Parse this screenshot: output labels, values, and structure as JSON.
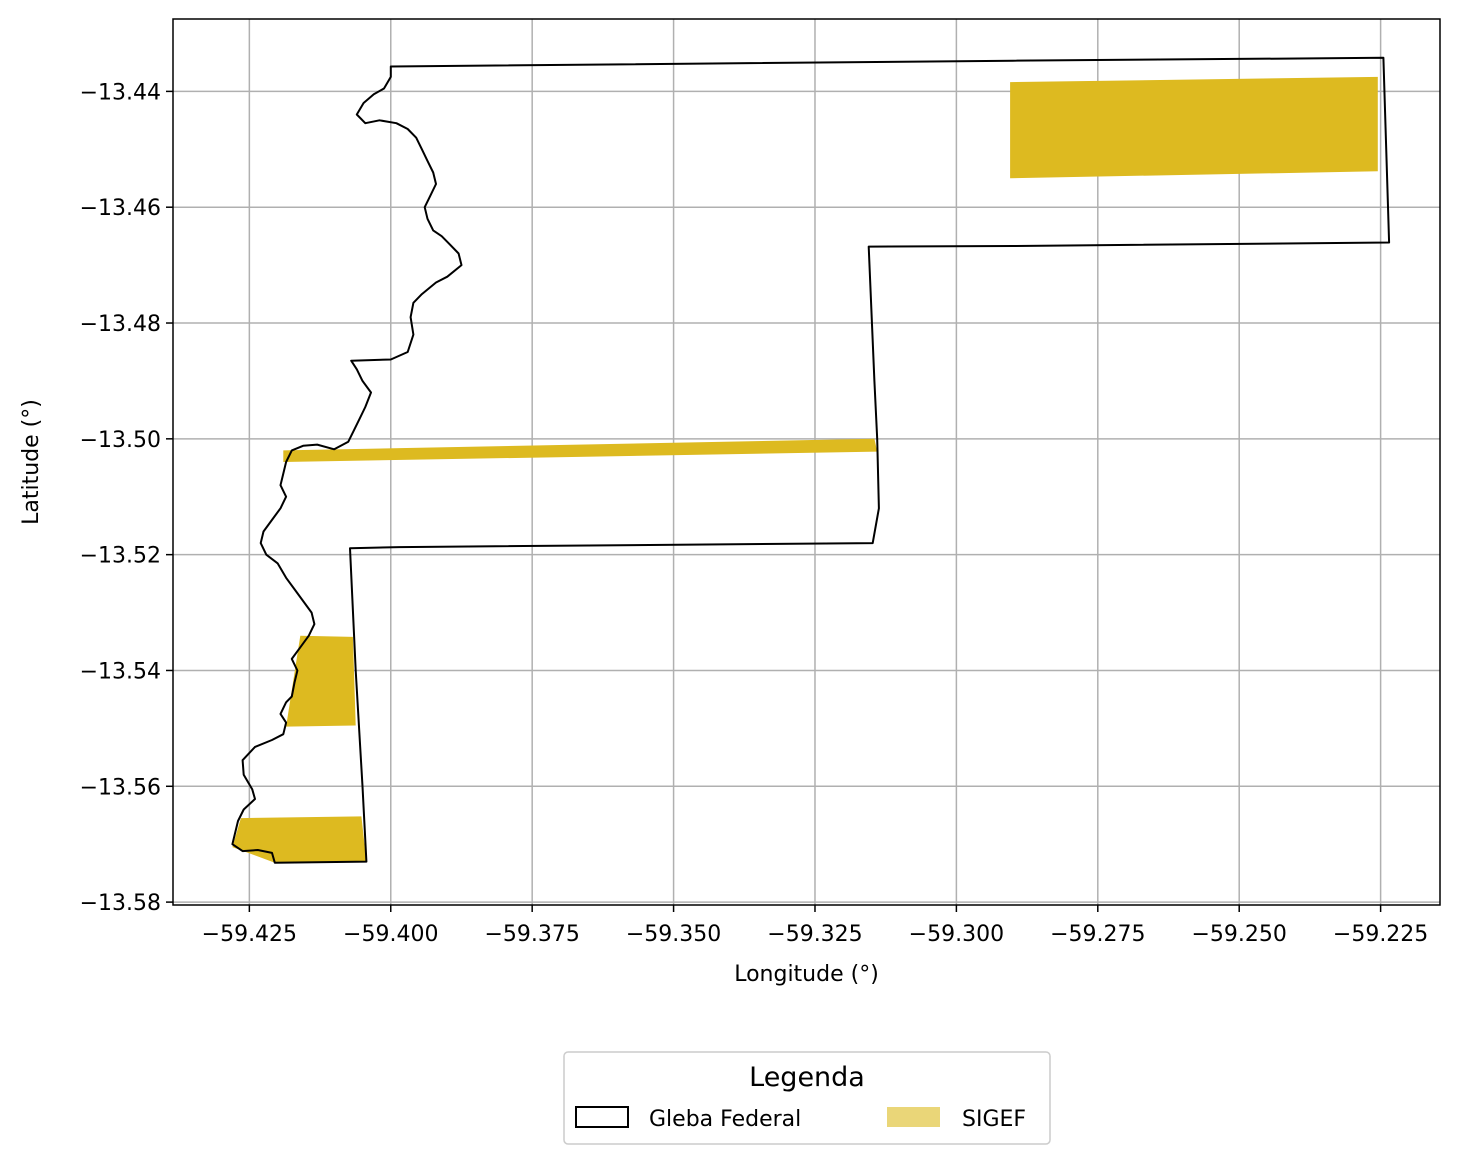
{
  "chart_data": {
    "type": "map",
    "xlabel": "Longitude (°)",
    "ylabel": "Latitude (°)",
    "xlim": [
      -59.4385,
      -59.2145
    ],
    "ylim": [
      -13.5805,
      -13.4275
    ],
    "x_ticks": [
      -59.425,
      -59.4,
      -59.375,
      -59.35,
      -59.325,
      -59.3,
      -59.275,
      -59.25,
      -59.225
    ],
    "x_tick_labels": [
      "−59.425",
      "−59.400",
      "−59.375",
      "−59.350",
      "−59.325",
      "−59.300",
      "−59.275",
      "−59.250",
      "−59.225"
    ],
    "y_ticks": [
      -13.44,
      -13.46,
      -13.48,
      -13.5,
      -13.52,
      -13.54,
      -13.56,
      -13.58
    ],
    "y_tick_labels": [
      "−13.44",
      "−13.46",
      "−13.48",
      "−13.50",
      "−13.52",
      "−13.54",
      "−13.56",
      "−13.58"
    ],
    "grid": true,
    "legend": {
      "title": "Legenda",
      "placement": "bottom-center",
      "entries": [
        {
          "label": "Gleba Federal",
          "style": "outline",
          "color": "#000000"
        },
        {
          "label": "SIGEF",
          "style": "fill",
          "color": "#ddba20",
          "swatch_color": "#ead678"
        }
      ]
    },
    "series": [
      {
        "name": "Gleba Federal",
        "kind": "outline",
        "color": "#000000",
        "coords": [
          [
            -59.4,
            -13.4357
          ],
          [
            -59.29,
            -13.4347
          ],
          [
            -59.2245,
            -13.4342
          ],
          [
            -59.2235,
            -13.4661
          ],
          [
            -59.29,
            -13.4667
          ],
          [
            -59.3155,
            -13.4668
          ],
          [
            -59.3145,
            -13.49
          ],
          [
            -59.314,
            -13.5
          ],
          [
            -59.3137,
            -13.512
          ],
          [
            -59.3148,
            -13.518
          ],
          [
            -59.3985,
            -13.5187
          ],
          [
            -59.4072,
            -13.5189
          ],
          [
            -59.4062,
            -13.54
          ],
          [
            -59.405,
            -13.56
          ],
          [
            -59.4043,
            -13.573
          ],
          [
            -59.4205,
            -13.5732
          ],
          [
            -59.421,
            -13.5715
          ],
          [
            -59.4235,
            -13.571
          ],
          [
            -59.4262,
            -13.5712
          ],
          [
            -59.428,
            -13.57
          ],
          [
            -59.427,
            -13.566
          ],
          [
            -59.426,
            -13.564
          ],
          [
            -59.424,
            -13.5622
          ],
          [
            -59.4245,
            -13.5605
          ],
          [
            -59.426,
            -13.558
          ],
          [
            -59.4262,
            -13.5555
          ],
          [
            -59.424,
            -13.5532
          ],
          [
            -59.421,
            -13.552
          ],
          [
            -59.419,
            -13.551
          ],
          [
            -59.4185,
            -13.549
          ],
          [
            -59.4195,
            -13.5475
          ],
          [
            -59.4185,
            -13.5455
          ],
          [
            -59.4175,
            -13.5445
          ],
          [
            -59.417,
            -13.542
          ],
          [
            -59.4165,
            -13.54
          ],
          [
            -59.4175,
            -13.538
          ],
          [
            -59.416,
            -13.536
          ],
          [
            -59.4145,
            -13.534
          ],
          [
            -59.4135,
            -13.532
          ],
          [
            -59.414,
            -13.53
          ],
          [
            -59.4155,
            -13.528
          ],
          [
            -59.417,
            -13.526
          ],
          [
            -59.4185,
            -13.524
          ],
          [
            -59.42,
            -13.5215
          ],
          [
            -59.422,
            -13.52
          ],
          [
            -59.423,
            -13.518
          ],
          [
            -59.4225,
            -13.516
          ],
          [
            -59.421,
            -13.514
          ],
          [
            -59.4195,
            -13.512
          ],
          [
            -59.4185,
            -13.51
          ],
          [
            -59.4195,
            -13.508
          ],
          [
            -59.419,
            -13.506
          ],
          [
            -59.4185,
            -13.504
          ],
          [
            -59.4175,
            -13.502
          ],
          [
            -59.4155,
            -13.5012
          ],
          [
            -59.413,
            -13.501
          ],
          [
            -59.41,
            -13.5018
          ],
          [
            -59.4075,
            -13.5005
          ],
          [
            -59.4065,
            -13.4985
          ],
          [
            -59.4055,
            -13.4965
          ],
          [
            -59.4045,
            -13.4945
          ],
          [
            -59.4035,
            -13.492
          ],
          [
            -59.405,
            -13.49
          ],
          [
            -59.406,
            -13.488
          ],
          [
            -59.407,
            -13.4865
          ],
          [
            -59.4,
            -13.4863
          ],
          [
            -59.397,
            -13.485
          ],
          [
            -59.396,
            -13.482
          ],
          [
            -59.3965,
            -13.479
          ],
          [
            -59.396,
            -13.4765
          ],
          [
            -59.3945,
            -13.475
          ],
          [
            -59.392,
            -13.473
          ],
          [
            -59.39,
            -13.472
          ],
          [
            -59.3875,
            -13.47
          ],
          [
            -59.388,
            -13.468
          ],
          [
            -59.3895,
            -13.4665
          ],
          [
            -59.391,
            -13.465
          ],
          [
            -59.3925,
            -13.464
          ],
          [
            -59.3935,
            -13.462
          ],
          [
            -59.394,
            -13.46
          ],
          [
            -59.393,
            -13.458
          ],
          [
            -59.392,
            -13.456
          ],
          [
            -59.3925,
            -13.454
          ],
          [
            -59.3935,
            -13.452
          ],
          [
            -59.3945,
            -13.45
          ],
          [
            -59.3955,
            -13.448
          ],
          [
            -59.397,
            -13.4465
          ],
          [
            -59.399,
            -13.4455
          ],
          [
            -59.402,
            -13.445
          ],
          [
            -59.4045,
            -13.4455
          ],
          [
            -59.406,
            -13.444
          ],
          [
            -59.4048,
            -13.442
          ],
          [
            -59.403,
            -13.4405
          ],
          [
            -59.4012,
            -13.4395
          ],
          [
            -59.4,
            -13.4375
          ],
          [
            -59.4,
            -13.4357
          ]
        ]
      },
      {
        "name": "SIGEF",
        "kind": "fill",
        "color": "#ddba20",
        "polygons": [
          [
            [
              -59.2905,
              -13.4384
            ],
            [
              -59.2255,
              -13.4375
            ],
            [
              -59.2255,
              -13.4538
            ],
            [
              -59.2905,
              -13.455
            ]
          ],
          [
            [
              -59.419,
              -13.502
            ],
            [
              -59.3145,
              -13.5
            ],
            [
              -59.314,
              -13.5022
            ],
            [
              -59.419,
              -13.504
            ]
          ],
          [
            [
              -59.416,
              -13.534
            ],
            [
              -59.4067,
              -13.5342
            ],
            [
              -59.4062,
              -13.5495
            ],
            [
              -59.4185,
              -13.5497
            ]
          ],
          [
            [
              -59.4265,
              -13.5655
            ],
            [
              -59.4052,
              -13.5652
            ],
            [
              -59.4043,
              -13.573
            ],
            [
              -59.4205,
              -13.5732
            ],
            [
              -59.428,
              -13.5705
            ]
          ]
        ]
      }
    ]
  }
}
